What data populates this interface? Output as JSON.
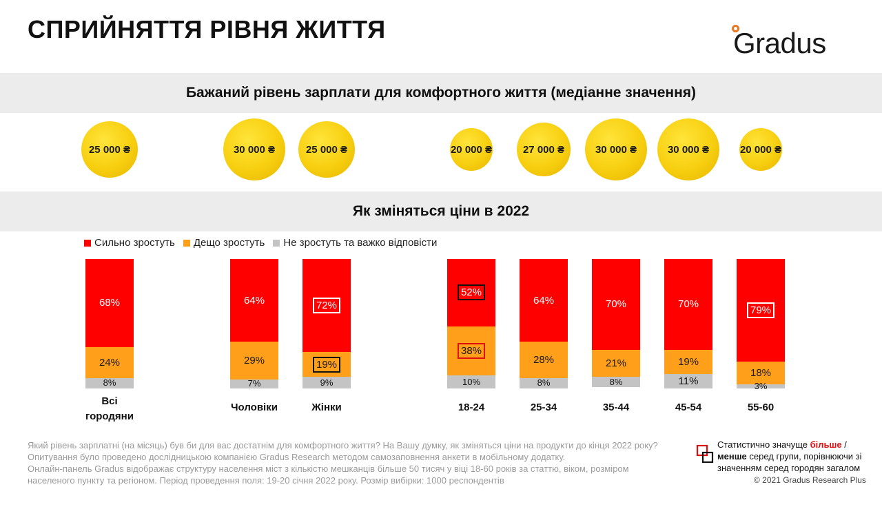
{
  "title": "СПРИЙНЯТТЯ РІВНЯ ЖИТТЯ",
  "logo": "Gradus",
  "salary_section": {
    "title": "Бажаний рівень зарплати для комфортного життя (медіанне значення)",
    "values": [
      "25 000 ₴",
      "30 000 ₴",
      "25 000 ₴",
      "20 000 ₴",
      "27 000 ₴",
      "30 000 ₴",
      "30 000 ₴",
      "20 000 ₴"
    ]
  },
  "prices_section": {
    "title": "Як зміняться ціни в 2022"
  },
  "legend": [
    {
      "label": "Сильно зростуть",
      "color": "#ff0000"
    },
    {
      "label": "Дещо зростуть",
      "color": "#ff9f1a"
    },
    {
      "label": "Не зростуть та важко відповісти",
      "color": "#c4c4c4"
    }
  ],
  "chart_data": {
    "type": "bar",
    "stacked": true,
    "unit": "%",
    "categories": [
      "Всі городяни",
      "Чоловіки",
      "Жінки",
      "18-24",
      "25-34",
      "35-44",
      "45-54",
      "55-60"
    ],
    "series": [
      {
        "name": "Сильно зростуть",
        "color": "#ff0000",
        "values": [
          68,
          64,
          72,
          52,
          64,
          70,
          70,
          79
        ],
        "labels": [
          "68%",
          "64%",
          "72%",
          "52%",
          "64%",
          "70%",
          "70%",
          "79%"
        ]
      },
      {
        "name": "Дещо зростуть",
        "color": "#ff9f1a",
        "values": [
          24,
          29,
          19,
          38,
          28,
          21,
          19,
          18
        ],
        "labels": [
          "24%",
          "29%",
          "19%",
          "38%",
          "28%",
          "21%",
          "19%",
          "18%"
        ]
      },
      {
        "name": "Не зростуть та важко відповісти",
        "color": "#c4c4c4",
        "values": [
          8,
          7,
          9,
          10,
          8,
          8,
          11,
          3
        ],
        "labels": [
          "8%",
          "7%",
          "9%",
          "10%",
          "8%",
          "8%",
          "11%",
          "3%"
        ]
      }
    ],
    "significance": [
      [
        "none",
        "none",
        "more",
        "less",
        "none",
        "none",
        "none",
        "more"
      ],
      [
        "none",
        "none",
        "less",
        "more",
        "none",
        "none",
        "none",
        "none"
      ],
      [
        "none",
        "none",
        "none",
        "none",
        "none",
        "none",
        "none",
        "none"
      ]
    ],
    "ylim": [
      0,
      100
    ],
    "legend_position": "top-left"
  },
  "footnote": {
    "line1": "Який рівень зарплатні (на місяць) був би для вас достатнім для комфортного життя? На Вашу думку, як зміняться ціни на продукти до кінця 2022 року?",
    "line2": "Опитування було проведено дослідницькою компанією Gradus Research методом самозаповнення анкети в мобільному додатку.",
    "line3": "Онлайн-панель Gradus відображає структуру населення міст з кількістю мешканців більше 50 тисяч у віці 18-60 років за статтю, віком, розміром",
    "line4": "населеного пункту та регіоном. Період проведення поля: 19-20 січня 2022 року. Розмір вибірки: 1000 респондентів"
  },
  "significance_note": {
    "prefix": "Статистично значуще ",
    "more": "більше",
    "sep": " /",
    "less": "менше",
    "suffix": " серед групи, порівнюючи зі значенням серед городян загалом"
  },
  "copyright": "© 2021 Gradus Research Plus"
}
